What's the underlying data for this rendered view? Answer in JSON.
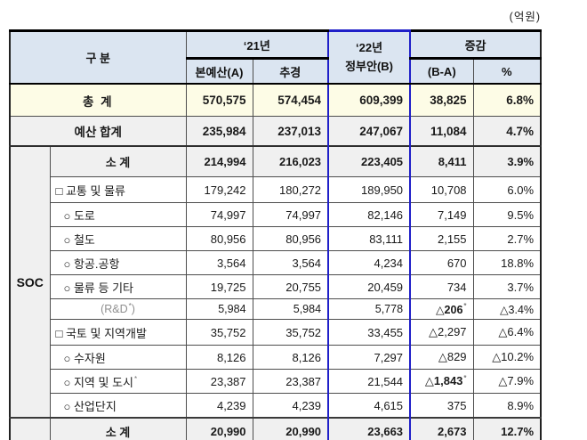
{
  "unit": "(억원)",
  "section_label": "SOC",
  "header": {
    "category": "구 분",
    "y21": "‘21년",
    "y21_sub": [
      "본예산(A)",
      "추경"
    ],
    "y22_line1": "‘22년",
    "y22_line2": "정부안(B)",
    "change": "증감",
    "change_sub": [
      "(B-A)",
      "%"
    ]
  },
  "colors": {
    "header_bg": "#dbe5f1",
    "total_row_bg": "#fdfce6",
    "subtotal_row_bg": "#f0f0f0",
    "highlight_border": "#1f1fc8"
  },
  "rows": [
    {
      "type": "total",
      "label": "총  계",
      "values": [
        "570,575",
        "574,454",
        "609,399",
        "38,825",
        "6.8%"
      ]
    },
    {
      "type": "budget_total",
      "label": "예산 합계",
      "values": [
        "235,984",
        "237,013",
        "247,067",
        "11,084",
        "4.7%"
      ]
    },
    {
      "type": "subtotal",
      "section_start": true,
      "label": "소 계",
      "values": [
        "214,994",
        "216,023",
        "223,405",
        "8,411",
        "3.9%"
      ]
    },
    {
      "type": "group",
      "label": "□ 교통 및 물류",
      "values": [
        "179,242",
        "180,272",
        "189,950",
        "10,708",
        "6.0%"
      ]
    },
    {
      "type": "item",
      "label": "○ 도로",
      "values": [
        "74,997",
        "74,997",
        "82,146",
        "7,149",
        "9.5%"
      ]
    },
    {
      "type": "item",
      "label": "○ 철도",
      "values": [
        "80,956",
        "80,956",
        "83,111",
        "2,155",
        "2.7%"
      ]
    },
    {
      "type": "item",
      "label": "○ 항공.공항",
      "values": [
        "3,564",
        "3,564",
        "4,234",
        "670",
        "18.8%"
      ]
    },
    {
      "type": "item",
      "label": "○ 물류 등 기타",
      "values": [
        "19,725",
        "20,755",
        "20,459",
        "734",
        "3.7%"
      ]
    },
    {
      "type": "rnd",
      "label": "(R&D",
      "label_sup": "*",
      "label_post": ")",
      "values": [
        "5,984",
        "5,984",
        "5,778",
        "△206",
        "△3.4%"
      ],
      "value_sup_index": 3,
      "value_sup": "*",
      "bold_value_index": 3
    },
    {
      "type": "group",
      "label": "□ 국토 및 지역개발",
      "values": [
        "35,752",
        "35,752",
        "33,455",
        "△2,297",
        "△6.4%"
      ]
    },
    {
      "type": "item",
      "label": "○ 수자원",
      "values": [
        "8,126",
        "8,126",
        "7,297",
        "△829",
        "△10.2%"
      ]
    },
    {
      "type": "item",
      "label": "○ 지역 및 도시",
      "label_sup": "*",
      "values": [
        "23,387",
        "23,387",
        "21,544",
        "△1,843",
        "△7.9%"
      ],
      "value_sup_index": 3,
      "value_sup": "*",
      "bold_value_index": 3
    },
    {
      "type": "item",
      "label": "○ 산업단지",
      "values": [
        "4,239",
        "4,239",
        "4,615",
        "375",
        "8.9%"
      ]
    },
    {
      "type": "subtotal2",
      "label": "소 계",
      "values": [
        "20,990",
        "20,990",
        "23,663",
        "2,673",
        "12.7%"
      ]
    }
  ]
}
